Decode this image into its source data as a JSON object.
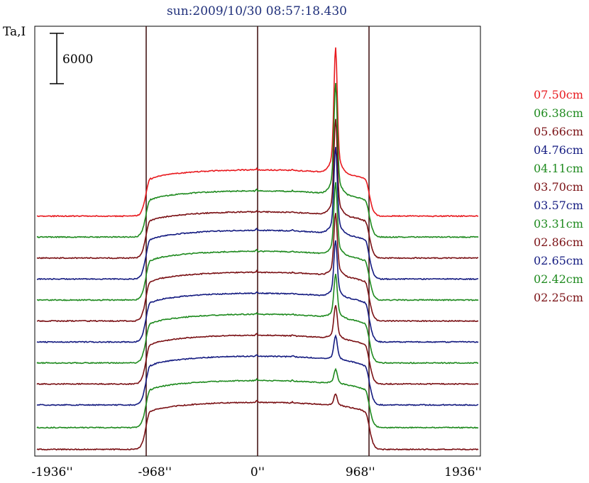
{
  "chart_data": {
    "type": "line",
    "title": "sun:2009/10/30 08:57:18.430",
    "ylabel": "Ta,I",
    "xlim": [
      -2100,
      2100
    ],
    "x_ticks": [
      {
        "value": -1936,
        "label": "-1936''"
      },
      {
        "value": -968,
        "label": "-968''"
      },
      {
        "value": 0,
        "label": "0''"
      },
      {
        "value": 968,
        "label": "968''"
      },
      {
        "value": 1936,
        "label": "1936''"
      }
    ],
    "vertical_lines": [
      -1050,
      0,
      1050
    ],
    "scale_bar": {
      "value": 6000,
      "label": "6000"
    },
    "series": [
      {
        "name": "07.50cm",
        "color": "#e8191e",
        "baseline": 28000,
        "plateau": 5500,
        "peak": 13000
      },
      {
        "name": "06.38cm",
        "color": "#1e8a1e",
        "baseline": 25500,
        "plateau": 5500,
        "peak": 11500
      },
      {
        "name": "05.66cm",
        "color": "#7a1014",
        "baseline": 23000,
        "plateau": 5500,
        "peak": 10000
      },
      {
        "name": "04.76cm",
        "color": "#131a80",
        "baseline": 20500,
        "plateau": 5800,
        "peak": 9000
      },
      {
        "name": "04.11cm",
        "color": "#1e8a1e",
        "baseline": 18000,
        "plateau": 5800,
        "peak": 7500
      },
      {
        "name": "03.70cm",
        "color": "#7a1014",
        "baseline": 15500,
        "plateau": 5800,
        "peak": 6500
      },
      {
        "name": "03.57cm",
        "color": "#131a80",
        "baseline": 13000,
        "plateau": 5800,
        "peak": 5800
      },
      {
        "name": "03.31cm",
        "color": "#1e8a1e",
        "baseline": 10500,
        "plateau": 5800,
        "peak": 4500
      },
      {
        "name": "02.86cm",
        "color": "#7a1014",
        "baseline": 8000,
        "plateau": 5800,
        "peak": 3500
      },
      {
        "name": "02.65cm",
        "color": "#131a80",
        "baseline": 5500,
        "plateau": 5800,
        "peak": 2500
      },
      {
        "name": "02.42cm",
        "color": "#1e8a1e",
        "baseline": 2800,
        "plateau": 5600,
        "peak": 1500
      },
      {
        "name": "02.25cm",
        "color": "#7a1014",
        "baseline": 200,
        "plateau": 5600,
        "peak": 1200
      }
    ],
    "grid": false,
    "legend_position": "right"
  }
}
